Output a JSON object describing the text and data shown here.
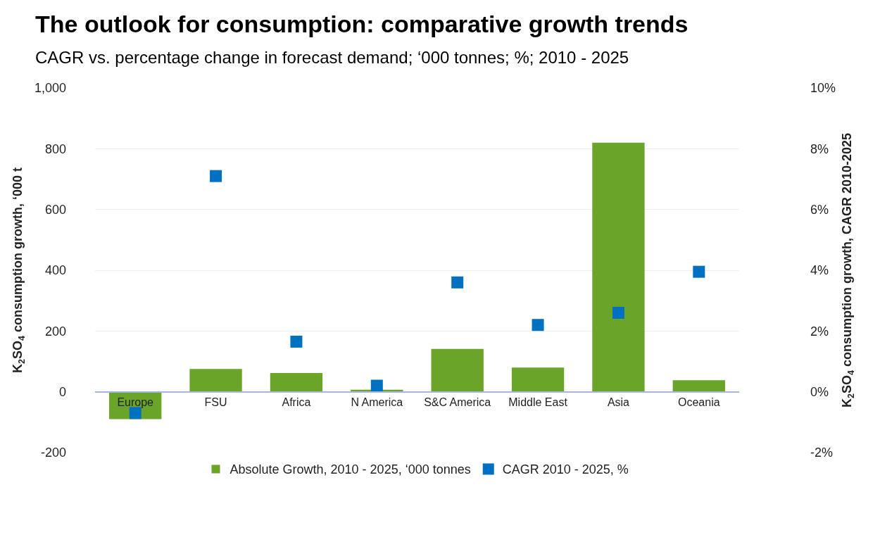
{
  "chart_data": {
    "type": "bar",
    "title": "The outlook for consumption: comparative growth trends",
    "subtitle": "CAGR vs. percentage change in forecast demand; ‘000 tonnes; %; 2010 - 2025",
    "ylabel": "K$_{2}$SO$_{4}$ consumption growth, ‘000 t",
    "y2label": "K$_{2}$SO$_{4}$ consumption growth, CAGR 2010-2025",
    "categories": [
      "Europe",
      "FSU",
      "Africa",
      "N America",
      "S&C America",
      "Middle East",
      "Asia",
      "Oceania"
    ],
    "series": [
      {
        "name": "Absolute Growth, 2010 - 2025, ‘000 tonnes",
        "color": "#6aa52a",
        "values": [
          -90,
          75,
          62,
          7,
          141,
          80,
          820,
          38
        ]
      },
      {
        "name": "CAGR 2010 - 2025, %",
        "type": "scatter",
        "axis": "y2",
        "color": "#0070c0",
        "marker": "square",
        "values": [
          -0.7,
          7.1,
          1.65,
          0.2,
          3.6,
          2.2,
          2.6,
          3.95
        ]
      }
    ],
    "ylim": [
      -200,
      1000
    ],
    "yticks": [
      -200,
      0,
      200,
      400,
      600,
      800,
      {
        "value": 1000,
        "label": "1,000"
      }
    ],
    "y2lim": [
      -2,
      10
    ],
    "y2ticks": [
      {
        "value": -2,
        "label": "-2%"
      },
      {
        "value": 0,
        "label": "0%"
      },
      {
        "value": 2,
        "label": "2%"
      },
      {
        "value": 4,
        "label": "4%"
      },
      {
        "value": 6,
        "label": "6%"
      },
      {
        "value": 8,
        "label": "8%"
      },
      {
        "value": 10,
        "label": "10%"
      }
    ],
    "grid": "y",
    "legend": "bottom"
  }
}
